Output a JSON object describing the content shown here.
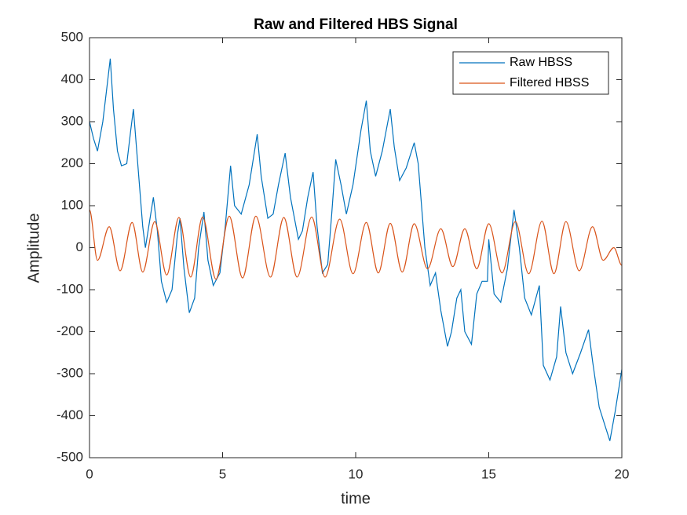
{
  "chart_data": {
    "type": "line",
    "title": "Raw and Filtered HBS Signal",
    "x_label": "time",
    "y_label": "Amplitude",
    "xlim": [
      0,
      20
    ],
    "xticks": [
      0,
      5,
      10,
      15,
      20
    ],
    "ylim": [
      -500,
      500
    ],
    "yticks": [
      -500,
      -400,
      -300,
      -200,
      -100,
      0,
      100,
      200,
      300,
      400,
      500
    ],
    "grid": false,
    "legend": "upper right",
    "series": [
      {
        "name": "Raw HBSS",
        "color": "#0072bd",
        "smooth": false,
        "x": [
          0,
          0.15,
          0.3,
          0.5,
          0.65,
          0.78,
          0.9,
          1.05,
          1.2,
          1.4,
          1.55,
          1.65,
          1.8,
          2.0,
          2.1,
          2.25,
          2.4,
          2.55,
          2.7,
          2.9,
          3.1,
          3.3,
          3.4,
          3.55,
          3.75,
          3.95,
          4.1,
          4.3,
          4.45,
          4.65,
          4.9,
          5.1,
          5.3,
          5.45,
          5.7,
          6.0,
          6.3,
          6.45,
          6.7,
          6.9,
          7.1,
          7.35,
          7.55,
          7.85,
          8.0,
          8.2,
          8.4,
          8.55,
          8.75,
          8.95,
          9.1,
          9.25,
          9.45,
          9.65,
          9.9,
          10.2,
          10.4,
          10.55,
          10.75,
          11.0,
          11.3,
          11.45,
          11.65,
          11.9,
          12.2,
          12.35,
          12.6,
          12.8,
          13.0,
          13.2,
          13.45,
          13.6,
          13.8,
          13.95,
          14.1,
          14.35,
          14.55,
          14.75,
          14.95,
          15.0,
          15.2,
          15.45,
          15.7,
          15.95,
          16.15,
          16.35,
          16.6,
          16.9,
          17.05,
          17.3,
          17.55,
          17.7,
          17.9,
          18.15,
          18.45,
          18.75,
          18.9,
          19.15,
          19.4,
          19.55,
          19.75,
          20
        ],
        "values": [
          300,
          260,
          230,
          300,
          380,
          450,
          330,
          230,
          195,
          200,
          280,
          330,
          210,
          50,
          0,
          60,
          120,
          40,
          -80,
          -130,
          -100,
          30,
          70,
          -50,
          -155,
          -120,
          0,
          85,
          -30,
          -90,
          -60,
          50,
          195,
          100,
          80,
          150,
          270,
          170,
          70,
          80,
          150,
          225,
          120,
          20,
          40,
          120,
          180,
          50,
          -60,
          -40,
          80,
          210,
          150,
          80,
          150,
          280,
          350,
          230,
          170,
          230,
          330,
          240,
          160,
          190,
          250,
          200,
          0,
          -90,
          -60,
          -150,
          -235,
          -200,
          -120,
          -100,
          -200,
          -230,
          -110,
          -80,
          -80,
          20,
          -110,
          -130,
          -50,
          90,
          0,
          -120,
          -160,
          -90,
          -280,
          -315,
          -260,
          -140,
          -250,
          -300,
          -250,
          -195,
          -270,
          -380,
          -430,
          -460,
          -390,
          -290
        ]
      },
      {
        "name": "Filtered HBSS",
        "color": "#d95319",
        "smooth": true,
        "x": [
          0,
          0.3,
          0.74,
          1.15,
          1.6,
          2.0,
          2.45,
          2.9,
          3.36,
          3.8,
          4.25,
          4.75,
          5.25,
          5.75,
          6.25,
          6.8,
          7.3,
          7.8,
          8.35,
          8.85,
          9.4,
          9.9,
          10.4,
          10.85,
          11.3,
          11.75,
          12.2,
          12.7,
          13.2,
          13.65,
          14.1,
          14.55,
          15.0,
          15.5,
          16.0,
          16.5,
          17.0,
          17.45,
          17.9,
          18.4,
          18.9,
          19.3,
          19.7,
          20
        ],
        "values": [
          90,
          -30,
          50,
          -55,
          60,
          -58,
          62,
          -65,
          72,
          -70,
          73,
          -75,
          75,
          -72,
          75,
          -70,
          72,
          -70,
          73,
          -70,
          68,
          -62,
          60,
          -60,
          58,
          -58,
          57,
          -50,
          45,
          -45,
          45,
          -50,
          57,
          -60,
          62,
          -62,
          63,
          -62,
          62,
          -55,
          50,
          -30,
          0,
          -42
        ]
      }
    ]
  }
}
